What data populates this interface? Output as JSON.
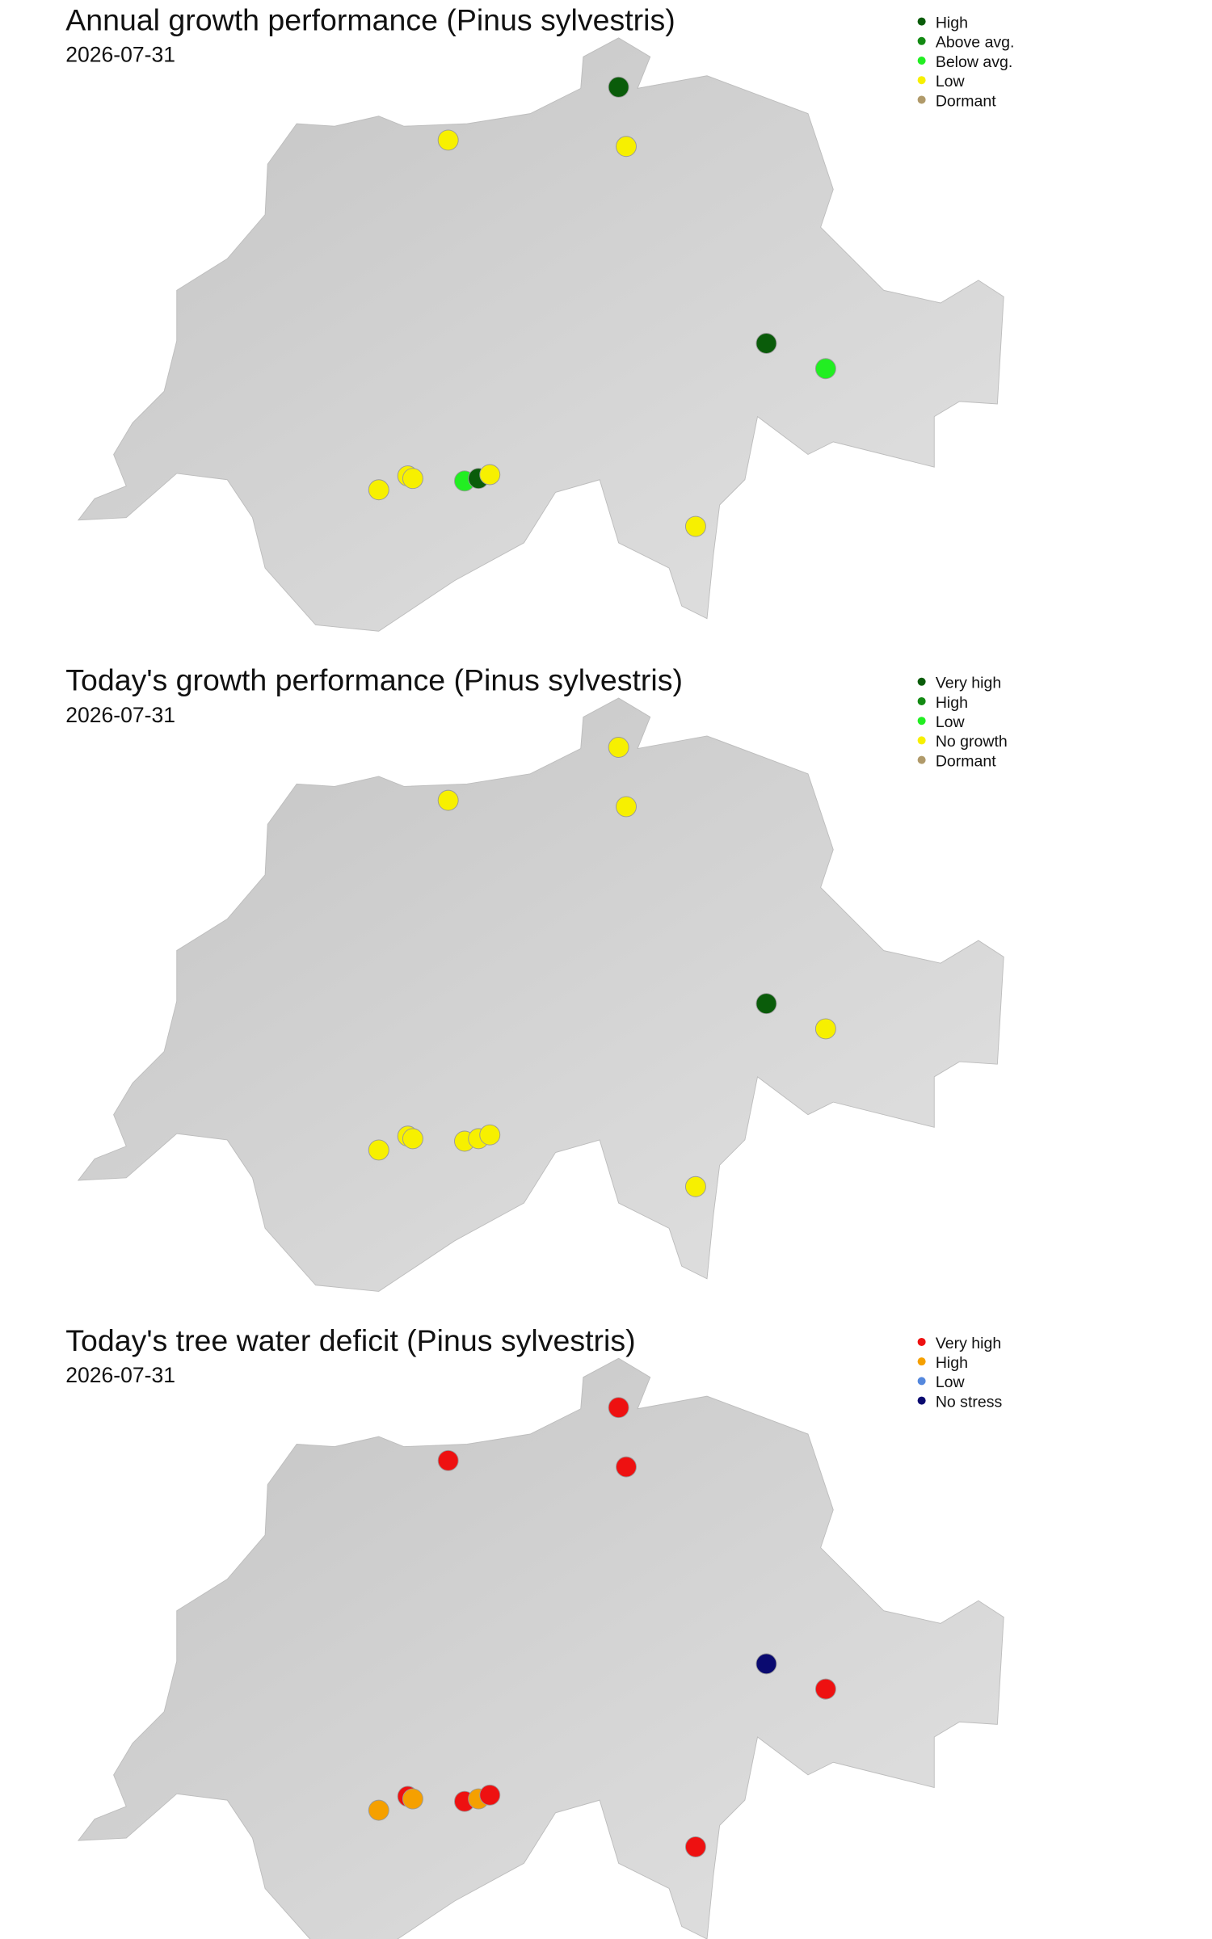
{
  "panels": [
    {
      "title": "Annual growth performance (Pinus sylvestris)",
      "date": "2026-07-31",
      "legend": [
        {
          "label": "High",
          "color": "#0a5c0a"
        },
        {
          "label": "Above avg.",
          "color": "#138a13"
        },
        {
          "label": "Below avg.",
          "color": "#22ee22"
        },
        {
          "label": "Low",
          "color": "#f7f000"
        },
        {
          "label": "Dormant",
          "color": "#b09a6a"
        }
      ],
      "point_colors": [
        "#0a5c0a",
        "#f7f000",
        "#f7f000",
        "#0a5c0a",
        "#22ee22",
        "#f7f000",
        "#f7f000",
        "#f7f000",
        "#22ee22",
        "#0a5c0a",
        "#f7f000",
        "#f7f000"
      ]
    },
    {
      "title": "Today's growth performance (Pinus sylvestris)",
      "date": "2026-07-31",
      "legend": [
        {
          "label": "Very high",
          "color": "#0a5c0a"
        },
        {
          "label": "High",
          "color": "#138a13"
        },
        {
          "label": "Low",
          "color": "#22ee22"
        },
        {
          "label": "No growth",
          "color": "#f7f000"
        },
        {
          "label": "Dormant",
          "color": "#b09a6a"
        }
      ],
      "point_colors": [
        "#f7f000",
        "#f7f000",
        "#f7f000",
        "#0a5c0a",
        "#f7f000",
        "#f7f000",
        "#f7f000",
        "#f7f000",
        "#f7f000",
        "#f7f000",
        "#f7f000",
        "#f7f000"
      ]
    },
    {
      "title": "Today's tree water deficit (Pinus sylvestris)",
      "date": "2026-07-31",
      "legend": [
        {
          "label": "Very high",
          "color": "#ee1111"
        },
        {
          "label": "High",
          "color": "#f5a000"
        },
        {
          "label": "Low",
          "color": "#5588dd"
        },
        {
          "label": "No stress",
          "color": "#0a0a70"
        }
      ],
      "point_colors": [
        "#ee1111",
        "#ee1111",
        "#ee1111",
        "#0a0a70",
        "#ee1111",
        "#f5a000",
        "#ee1111",
        "#f5a000",
        "#ee1111",
        "#f5a000",
        "#ee1111",
        "#ee1111"
      ]
    }
  ]
}
